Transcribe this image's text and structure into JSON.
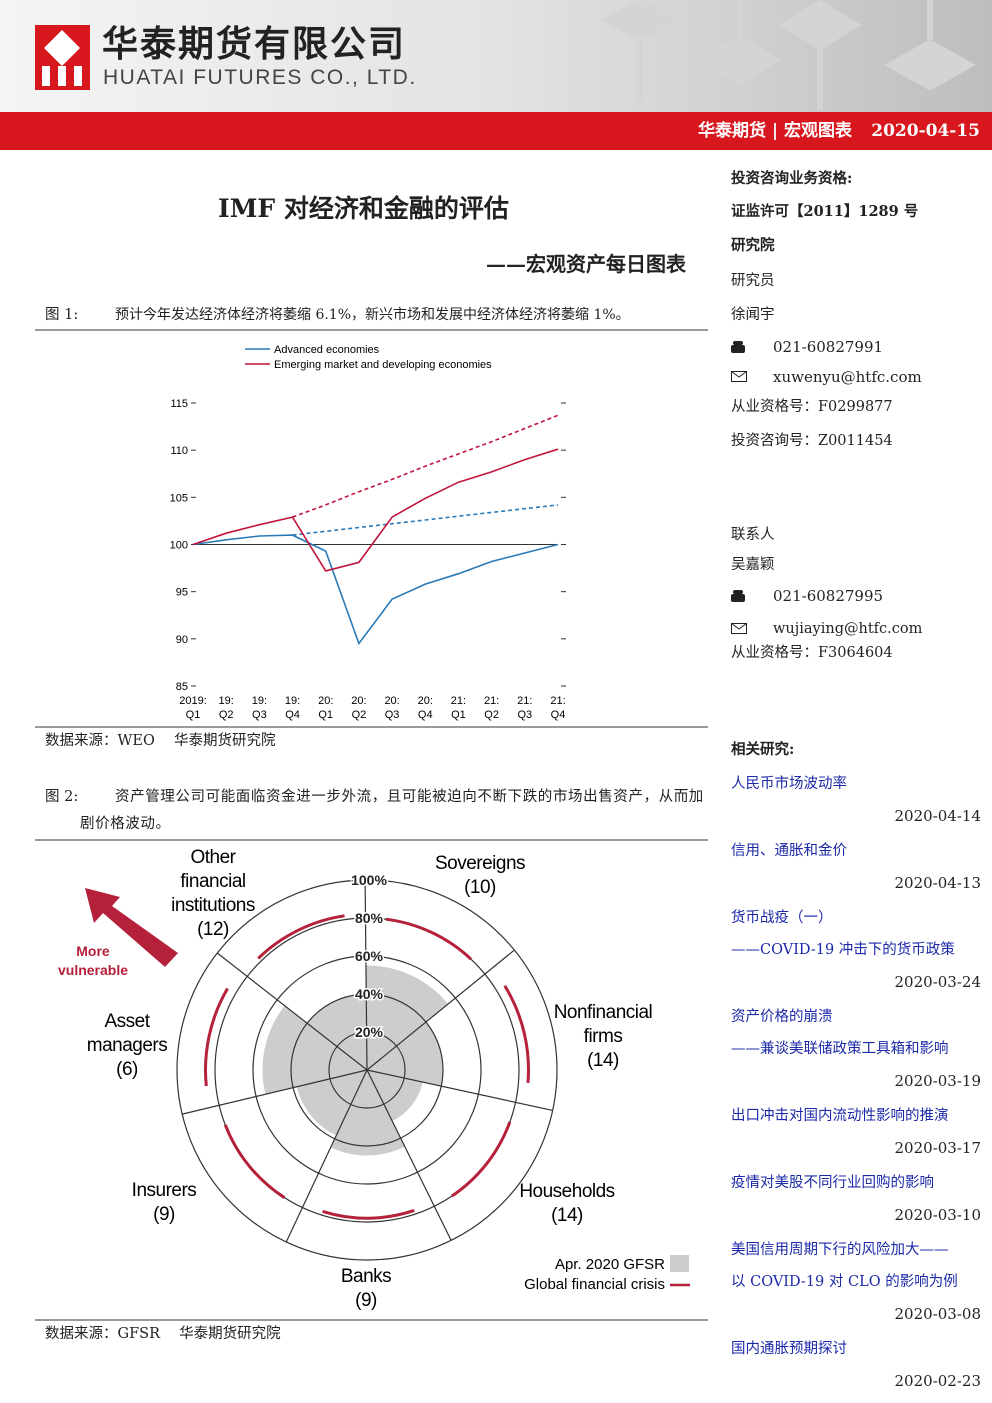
{
  "header": {
    "company_cn": "华泰期货有限公司",
    "company_en": "HUATAI FUTURES CO., LTD.",
    "banner": "华泰期货 | 宏观图表",
    "date": "2020-04-15"
  },
  "title": "IMF 对经济和金融的评估",
  "subtitle": "——宏观资产每日图表",
  "figures": [
    {
      "label": "图 1:",
      "caption": "预计今年发达经济体经济将萎缩 6.1%，新兴市场和发展中经济体经济将萎缩 1%。",
      "source": "数据来源：WEO　 华泰期货研究院"
    },
    {
      "label": "图 2:",
      "caption": "资产管理公司可能面临资金进一步外流，且可能被迫向不断下跌的市场出售资产，从而加剧价格波动。",
      "source": "数据来源：GFSR　 华泰期货研究院"
    }
  ],
  "chart_data": [
    {
      "type": "line",
      "categories": [
        "2019:\nQ1",
        "19:\nQ2",
        "19:\nQ3",
        "19:\nQ4",
        "20:\nQ1",
        "20:\nQ2",
        "20:\nQ3",
        "20:\nQ4",
        "21:\nQ1",
        "21:\nQ2",
        "21:\nQ3",
        "21:\nQ4"
      ],
      "series": [
        {
          "name": "Advanced economies",
          "color": "#2a7ab8",
          "values": [
            100,
            100.5,
            100.9,
            101.0,
            99.3,
            89.5,
            94.2,
            95.8,
            96.9,
            98.2,
            99.1,
            100.0
          ],
          "projection": [
            null,
            null,
            null,
            101.0,
            101.4,
            101.8,
            102.2,
            102.6,
            103.0,
            103.4,
            103.8,
            104.2
          ]
        },
        {
          "name": "Emerging market and developing economies",
          "color": "#c0143c",
          "values": [
            100,
            101.2,
            102.1,
            102.9,
            97.2,
            98.1,
            102.9,
            104.9,
            106.6,
            107.7,
            109.0,
            110.1
          ],
          "projection": [
            null,
            null,
            null,
            102.9,
            104.2,
            105.6,
            106.9,
            108.3,
            109.6,
            110.9,
            112.3,
            113.7
          ]
        }
      ],
      "reference_line": 100,
      "ylim": [
        85,
        115
      ],
      "yticks": [
        85,
        90,
        95,
        100,
        105,
        110,
        115
      ],
      "legend": "upper left"
    },
    {
      "type": "radar",
      "categories": [
        "Other\nfinancial\ninstitutions\n(12)",
        "Sovereigns\n(10)",
        "Nonfinancial\nfirms\n(14)",
        "Households\n(14)",
        "Banks\n(9)",
        "Insurers\n(9)",
        "Asset\nmanagers\n(6)"
      ],
      "series": [
        {
          "name": "Apr. 2020 GFSR",
          "color": "#cdcdcd",
          "mark": "wedge",
          "values": [
            40,
            55,
            40,
            30,
            45,
            38,
            55
          ]
        },
        {
          "name": "Global financial crisis",
          "color": "#b5213a",
          "mark": "arc",
          "values": [
            82,
            80,
            85,
            80,
            78,
            80,
            85
          ]
        }
      ],
      "rlim": [
        0,
        100
      ],
      "rticks": [
        {
          "value": 20,
          "label": "20%"
        },
        {
          "value": 40,
          "label": "40%"
        },
        {
          "value": 60,
          "label": "60%"
        },
        {
          "value": 80,
          "label": "80%"
        },
        {
          "value": 100,
          "label": "100%"
        }
      ],
      "annotation": "More\nvulnerable",
      "legend": "lower right"
    }
  ],
  "sidebar": {
    "qualification": "投资咨询业务资格:",
    "license": "证监许可【2011】1289 号",
    "institute": "研究院",
    "role": "研究员",
    "analyst": "徐闻宇",
    "analyst_phone": "021-60827991",
    "analyst_email": "xuwenyu@htfc.com",
    "analyst_cert": "从业资格号：F0299877",
    "analyst_advisory": "投资咨询号：Z0011454",
    "contact_role": "联系人",
    "contact": "吴嘉颖",
    "contact_phone": "021-60827995",
    "contact_email": "wujiaying@htfc.com",
    "contact_cert": "从业资格号：F3064604",
    "related_title": "相关研究:",
    "related": [
      {
        "lines": [
          "人民币市场波动率"
        ],
        "date": "2020-04-14"
      },
      {
        "lines": [
          "信用、通胀和金价"
        ],
        "date": "2020-04-13"
      },
      {
        "lines": [
          "货币战疫（一）",
          "——COVID-19 冲击下的货币政策"
        ],
        "date": "2020-03-24"
      },
      {
        "lines": [
          "资产价格的崩溃",
          "——兼谈美联储政策工具箱和影响"
        ],
        "date": "2020-03-19"
      },
      {
        "lines": [
          "出口冲击对国内流动性影响的推演"
        ],
        "date": "2020-03-17"
      },
      {
        "lines": [
          "疫情对美股不同行业回购的影响"
        ],
        "date": "2020-03-10"
      },
      {
        "lines": [
          "美国信用周期下行的风险加大——",
          "以 COVID-19 对 CLO 的影响为例"
        ],
        "date": "2020-03-08"
      },
      {
        "lines": [
          "国内通胀预期探讨"
        ],
        "date": "2020-02-23"
      }
    ]
  }
}
